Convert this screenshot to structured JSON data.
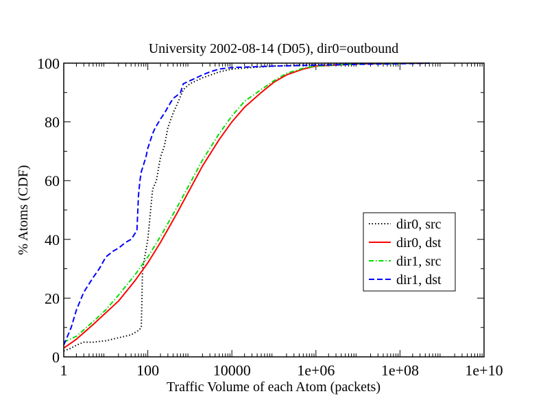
{
  "chart_data": {
    "type": "line",
    "title": "University 2002-08-14 (D05), dir0=outbound",
    "xlabel": "Traffic Volume of each Atom (packets)",
    "ylabel": "% Atoms (CDF)",
    "x_scale": "log",
    "xlim": [
      1,
      10000000000
    ],
    "ylim": [
      0,
      100
    ],
    "x_ticks": [
      1,
      100,
      10000,
      1000000,
      100000000,
      10000000000
    ],
    "x_tick_labels": [
      "1",
      "100",
      "10000",
      "1e+06",
      "1e+08",
      "1e+10"
    ],
    "y_ticks": [
      0,
      20,
      40,
      60,
      80,
      100
    ],
    "y_tick_labels": [
      "0",
      "20",
      "40",
      "60",
      "80",
      "100"
    ],
    "grid": false,
    "legend_position": "right",
    "series": [
      {
        "name": "dir0, src",
        "color": "#000000",
        "dash": "dotted",
        "x": [
          1,
          1.5,
          2,
          3,
          5,
          10,
          20,
          40,
          60,
          70,
          75,
          80,
          100,
          130,
          160,
          200,
          250,
          300,
          400,
          500,
          700,
          1000,
          2000,
          5000,
          10000,
          30000,
          100000,
          300000,
          1000000,
          10000000,
          100000000,
          500000000
        ],
        "y": [
          2,
          3,
          4,
          5,
          5,
          5.5,
          6.5,
          7.5,
          9,
          10,
          30,
          32,
          40,
          57,
          60,
          68,
          72,
          78,
          83,
          86,
          91,
          93,
          95,
          97,
          98,
          98.5,
          99,
          99.3,
          99.5,
          99.7,
          99.9,
          100
        ]
      },
      {
        "name": "dir0, dst",
        "color": "#ff0000",
        "dash": "solid",
        "x": [
          1,
          2,
          5,
          10,
          20,
          50,
          100,
          200,
          500,
          1000,
          2000,
          5000,
          10000,
          20000,
          50000,
          100000,
          200000,
          500000,
          1000000,
          10000000,
          100000000,
          500000000
        ],
        "y": [
          3,
          6,
          11,
          15,
          19,
          26,
          32,
          39,
          49,
          57,
          65,
          74,
          80,
          85,
          90,
          93.5,
          96,
          98,
          99,
          99.7,
          99.9,
          100
        ]
      },
      {
        "name": "dir1, src",
        "color": "#00dd00",
        "dash": "dashdot",
        "x": [
          1,
          2,
          5,
          10,
          20,
          50,
          100,
          200,
          500,
          1000,
          2000,
          5000,
          10000,
          20000,
          50000,
          100000,
          200000,
          500000,
          1000000,
          10000000,
          100000000,
          500000000
        ],
        "y": [
          5,
          7,
          12,
          16,
          21,
          28,
          34,
          41,
          51,
          59,
          67,
          76,
          82,
          87,
          91,
          94,
          96.5,
          98.3,
          99,
          99.7,
          99.9,
          100
        ]
      },
      {
        "name": "dir1, dst",
        "color": "#0000ff",
        "dash": "dashed",
        "x": [
          1,
          1.5,
          2,
          3,
          5,
          7,
          10,
          15,
          20,
          30,
          40,
          55,
          60,
          65,
          70,
          90,
          100,
          130,
          150,
          200,
          250,
          300,
          400,
          500,
          600,
          700,
          1000,
          2000,
          3000,
          5000,
          10000,
          100000,
          1000000,
          10000000,
          100000000,
          500000000
        ],
        "y": [
          4,
          10,
          16,
          22,
          27,
          30,
          34,
          36,
          37,
          39,
          40,
          43,
          55,
          60,
          63,
          68,
          71,
          76,
          78,
          81,
          83,
          85,
          88,
          89,
          90,
          93,
          94,
          96,
          97,
          98,
          98.5,
          99,
          99.3,
          99.6,
          99.8,
          100
        ]
      }
    ]
  }
}
